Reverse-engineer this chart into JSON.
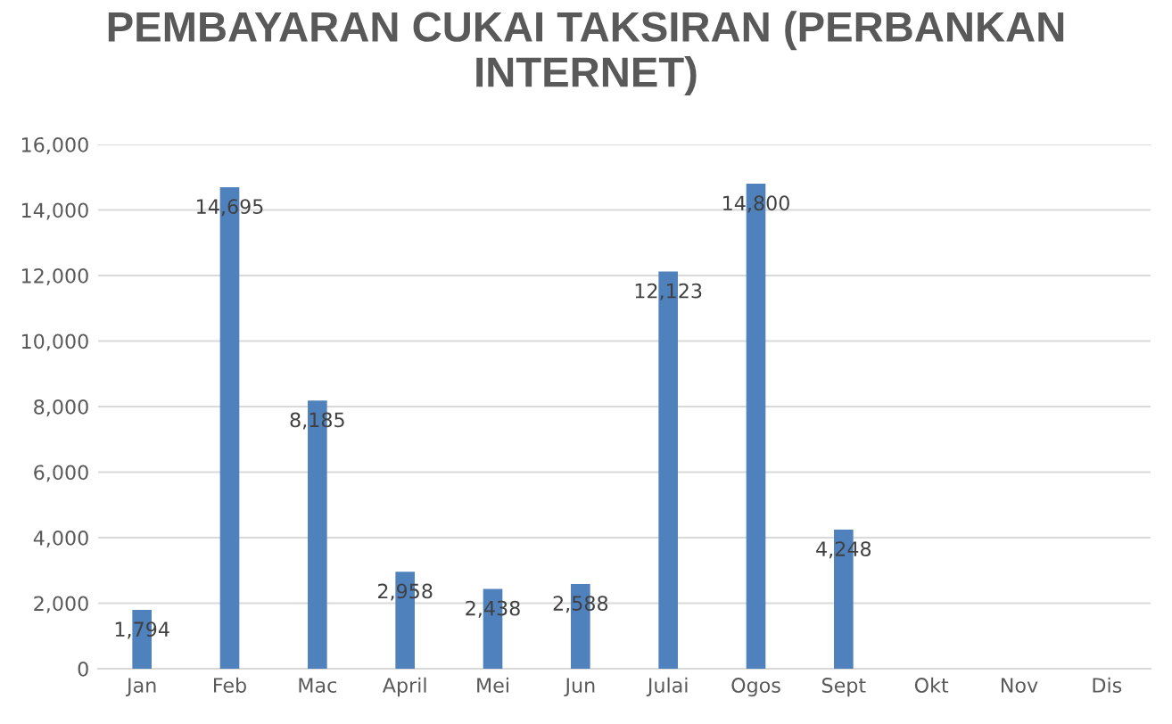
{
  "chart_data": {
    "type": "bar",
    "title": "PEMBAYARAN CUKAI TAKSIRAN (PERBANKAN INTERNET)",
    "categories": [
      "Jan",
      "Feb",
      "Mac",
      "April",
      "Mei",
      "Jun",
      "Julai",
      "Ogos",
      "Sept",
      "Okt",
      "Nov",
      "Dis"
    ],
    "values": [
      1794,
      14695,
      8185,
      2958,
      2438,
      2588,
      12123,
      14800,
      4248,
      null,
      null,
      null
    ],
    "color": "#4f81bd",
    "ylim": [
      0,
      16000
    ],
    "yticks": [
      {
        "value": 0,
        "label": "0"
      },
      {
        "value": 2000,
        "label": "2,000"
      },
      {
        "value": 4000,
        "label": "4,000"
      },
      {
        "value": 6000,
        "label": "6,000"
      },
      {
        "value": 8000,
        "label": "8,000"
      },
      {
        "value": 10000,
        "label": "10,000"
      },
      {
        "value": 12000,
        "label": "12,000"
      },
      {
        "value": 14000,
        "label": "14,000"
      },
      {
        "value": 16000,
        "label": "16,000"
      }
    ],
    "value_labels": [
      "1,794",
      "14,695",
      "8,185",
      "2,958",
      "2,438",
      "2,588",
      "12,123",
      "14,800",
      "4,248",
      null,
      null,
      null
    ],
    "grid": "y",
    "legend": false
  }
}
